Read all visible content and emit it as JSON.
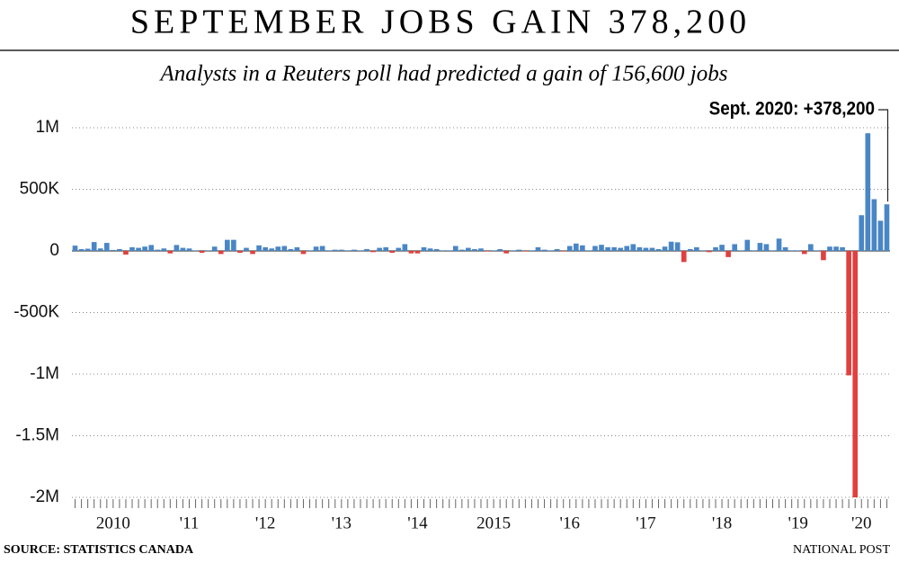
{
  "chart_data": {
    "type": "bar",
    "title": "SEPTEMBER JOBS GAIN 378,200",
    "subtitle": "Analysts in a Reuters poll had predicted a gain of 156,600 jobs",
    "annotation": "Sept. 2020: +378,200",
    "source": "SOURCE: STATISTICS CANADA",
    "credit": "NATIONAL POST",
    "positive_color": "#4a86c5",
    "negative_color": "#e0403f",
    "ylim": [
      -2000000,
      1200000
    ],
    "yticks": [
      {
        "value": -2000000,
        "label": "-2M"
      },
      {
        "value": -1500000,
        "label": "-1.5M"
      },
      {
        "value": -1000000,
        "label": "-1M"
      },
      {
        "value": -500000,
        "label": "-500K"
      },
      0,
      {
        "value": 500000,
        "label": "500K"
      },
      {
        "value": 1000000,
        "label": "1M"
      }
    ],
    "grid": true,
    "categories": [
      null,
      null,
      null,
      null,
      null,
      null,
      "2010",
      null,
      null,
      null,
      null,
      null,
      null,
      null,
      null,
      null,
      null,
      null,
      "'11",
      null,
      null,
      null,
      null,
      null,
      null,
      null,
      null,
      null,
      null,
      null,
      "'12",
      null,
      null,
      null,
      null,
      null,
      null,
      null,
      null,
      null,
      null,
      null,
      "'13",
      null,
      null,
      null,
      null,
      null,
      null,
      null,
      null,
      null,
      null,
      null,
      "'14",
      null,
      null,
      null,
      null,
      null,
      null,
      null,
      null,
      null,
      null,
      null,
      "2015",
      null,
      null,
      null,
      null,
      null,
      null,
      null,
      null,
      null,
      null,
      null,
      "'16",
      null,
      null,
      null,
      null,
      null,
      null,
      null,
      null,
      null,
      null,
      null,
      "'17",
      null,
      null,
      null,
      null,
      null,
      null,
      null,
      null,
      null,
      null,
      null,
      "'18",
      null,
      null,
      null,
      null,
      null,
      null,
      null,
      null,
      null,
      null,
      null,
      "'19",
      null,
      null,
      null,
      null,
      null,
      null,
      null,
      null,
      null,
      "'20",
      null,
      null,
      null,
      null
    ],
    "values": [
      43000,
      15000,
      18000,
      72000,
      20000,
      65000,
      8000,
      15000,
      -30000,
      30000,
      25000,
      35000,
      48000,
      10000,
      20000,
      -20000,
      48000,
      25000,
      20000,
      5000,
      -15000,
      5000,
      35000,
      -25000,
      90000,
      90000,
      -15000,
      25000,
      -25000,
      45000,
      30000,
      20000,
      35000,
      40000,
      15000,
      30000,
      -25000,
      5000,
      35000,
      40000,
      5000,
      10000,
      10000,
      5000,
      10000,
      5000,
      15000,
      -10000,
      25000,
      30000,
      -15000,
      25000,
      55000,
      -20000,
      -20000,
      30000,
      20000,
      15000,
      5000,
      5000,
      40000,
      10000,
      25000,
      15000,
      20000,
      -5000,
      5000,
      15000,
      -20000,
      5000,
      10000,
      -5000,
      5000,
      30000,
      10000,
      5000,
      15000,
      -5000,
      40000,
      60000,
      45000,
      5000,
      40000,
      50000,
      30000,
      30000,
      25000,
      40000,
      55000,
      30000,
      25000,
      25000,
      15000,
      35000,
      75000,
      70000,
      -90000,
      15000,
      30000,
      5000,
      -10000,
      30000,
      50000,
      -50000,
      55000,
      5000,
      90000,
      5000,
      65000,
      55000,
      5000,
      100000,
      30000,
      5000,
      5000,
      -25000,
      55000,
      5000,
      -75000,
      35000,
      35000,
      30000,
      -1010000,
      -2000000,
      290000,
      955000,
      420000,
      245000,
      378200
    ]
  }
}
